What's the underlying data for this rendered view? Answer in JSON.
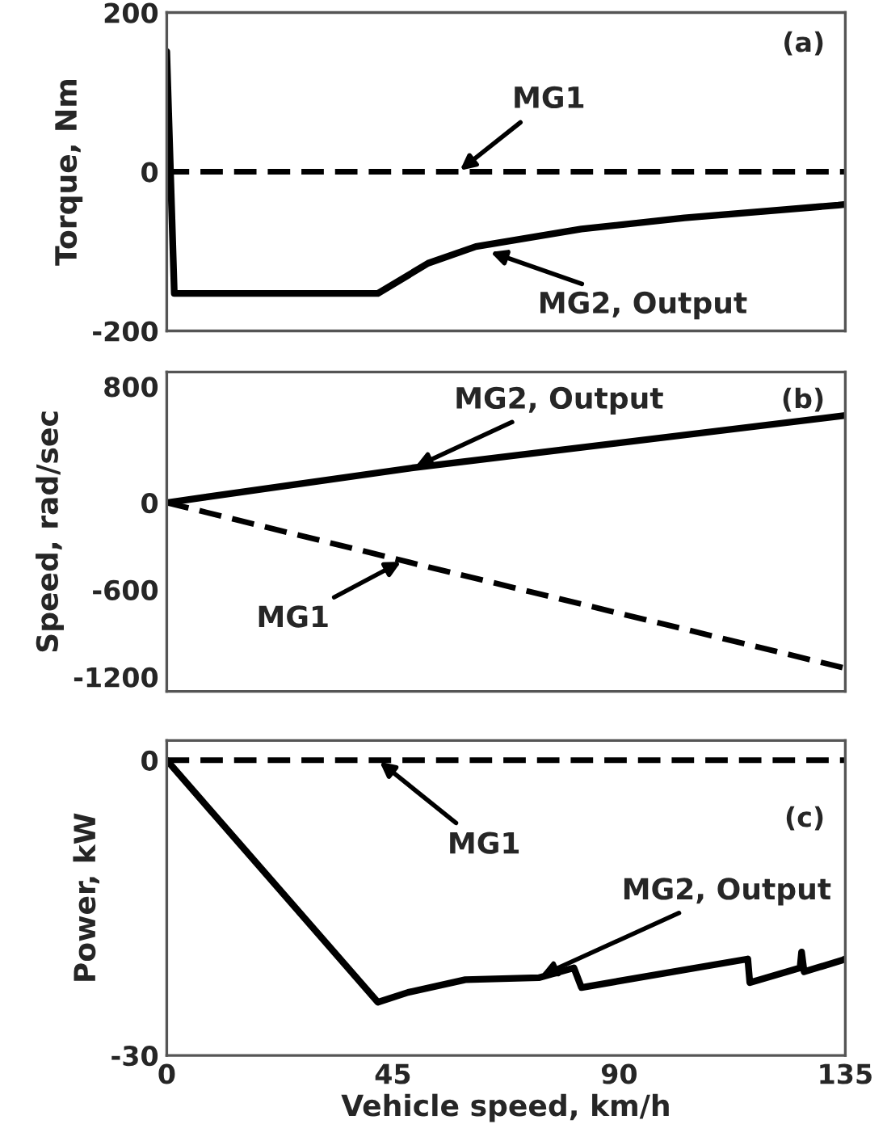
{
  "chart_data": [
    {
      "type": "line",
      "ylabel": "Torque, Nm",
      "xlim": [
        0,
        135
      ],
      "xticks": [
        0,
        45,
        90,
        135
      ],
      "ylim": [
        -200,
        200
      ],
      "yticks": [
        200,
        0,
        -200
      ],
      "tick_labels": "y",
      "grid": false,
      "legend": false,
      "series": [
        {
          "color": "#000000",
          "line_style": "dashed",
          "x": [
            0,
            135
          ],
          "values": [
            0,
            0
          ]
        },
        {
          "color": "#000000",
          "line_style": "solid",
          "x": [
            0,
            1.5,
            42,
            52,
            61.5,
            82.5,
            103,
            133.6,
            135
          ],
          "values": [
            151,
            -153,
            -153,
            -115,
            -94,
            -72,
            -58,
            -42,
            -41
          ]
        }
      ],
      "annotations": [
        "(a)",
        {
          "text": "MG1",
          "x": 58,
          "y": 0
        },
        {
          "text": "MG2, Output",
          "x": 64,
          "y": -100
        }
      ]
    },
    {
      "type": "line",
      "ylabel": "Speed, rad/sec",
      "xlim": [
        0,
        135
      ],
      "xticks": [
        0,
        45,
        90,
        135
      ],
      "ylim": [
        -1300,
        900
      ],
      "yticks": [
        800,
        0,
        -600,
        -1200
      ],
      "tick_labels": "y",
      "grid": false,
      "legend": false,
      "series": [
        {
          "color": "#000000",
          "line_style": "solid",
          "x": [
            0,
            49,
            135
          ],
          "values": [
            0,
            240,
            600
          ]
        },
        {
          "color": "#000000",
          "line_style": "dashed",
          "x": [
            0,
            47,
            135
          ],
          "values": [
            0,
            -400,
            -1140
          ]
        }
      ],
      "annotations": [
        "(b)",
        {
          "text": "MG2, Output",
          "x": 49,
          "y": 240
        },
        {
          "text": "MG1",
          "x": 47,
          "y": -400
        }
      ]
    },
    {
      "type": "line",
      "xlabel": "Vehicle speed, km/h",
      "ylabel": "Power, kW",
      "xlim": [
        0,
        135
      ],
      "xticks": [
        0,
        45,
        90,
        135
      ],
      "ylim": [
        -30,
        2
      ],
      "yticks": [
        0,
        -30
      ],
      "grid": false,
      "legend": false,
      "series": [
        {
          "color": "#000000",
          "line_style": "dashed",
          "x": [
            0,
            135
          ],
          "values": [
            0,
            0
          ]
        },
        {
          "color": "#000000",
          "line_style": "solid",
          "x": [
            0,
            42,
            48,
            59.4,
            74,
            81,
            82.5,
            115.6,
            116,
            126,
            126.3,
            126.8,
            134.5,
            135
          ],
          "values": [
            0,
            -24.6,
            -23.6,
            -22.3,
            -22.1,
            -21.1,
            -23.1,
            -20.2,
            -22.6,
            -21.1,
            -19.5,
            -21.5,
            -20.3,
            -20.2
          ]
        }
      ],
      "annotations": [
        "(c)",
        {
          "text": "MG1",
          "x": 42,
          "y": 0
        },
        {
          "text": "MG2, Output",
          "x": 74,
          "y": -22
        }
      ]
    }
  ]
}
